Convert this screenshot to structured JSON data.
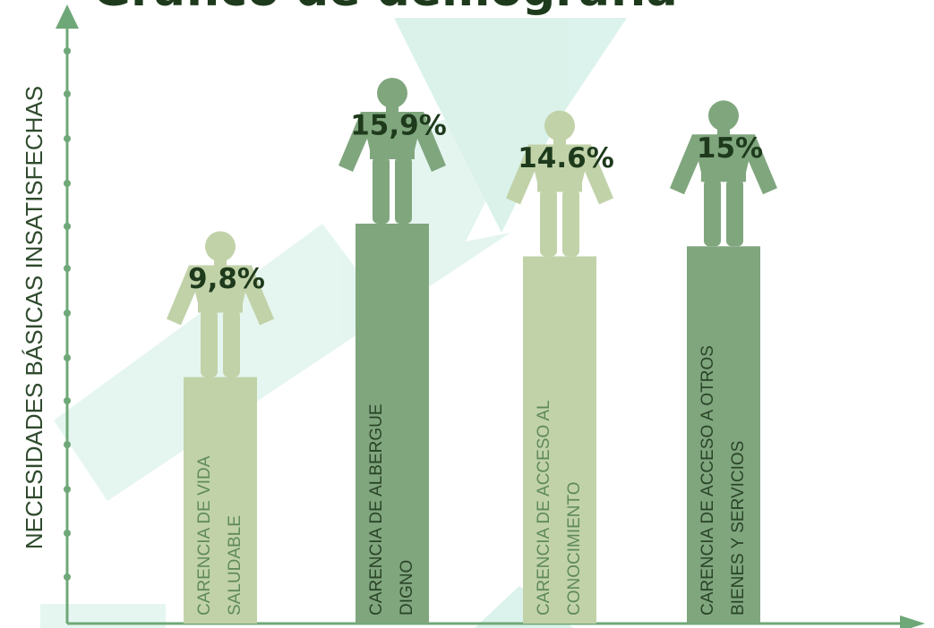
{
  "chart_data": {
    "type": "bar",
    "title": "Gráfico de demografía",
    "y_label": "NECESIDADES BÁSICAS INSATISFECHAS",
    "categories": [
      [
        "CARENCIA DE VIDA",
        "SALUDABLE"
      ],
      [
        "CARENCIA DE ALBERGUE",
        "DIGNO"
      ],
      [
        "CARENCIA DE ACCESO AL",
        "CONOCIMIENTO"
      ],
      [
        "CARENCIA DE ACCESO A OTROS",
        "BIENES Y SERVICIOS"
      ]
    ],
    "values": [
      9.8,
      15.9,
      14.6,
      15
    ],
    "value_labels": [
      "9,8%",
      "15,9%",
      "14.6%",
      "15%"
    ],
    "colors": [
      "#c1d2a9",
      "#80a67e",
      "#c1d2a9",
      "#80a67e"
    ]
  }
}
